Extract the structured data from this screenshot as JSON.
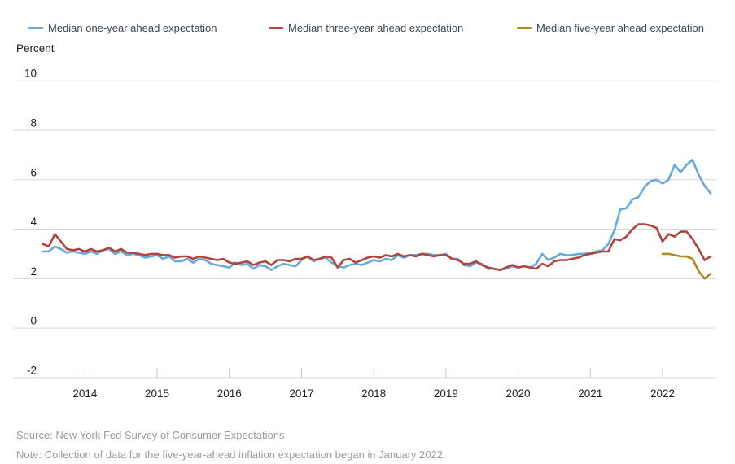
{
  "axis_unit_label": "Percent",
  "footer": {
    "source": "Source: New York Fed Survey of Consumer Expectations",
    "note": "Note: Collection of data for the five-year-ahead inflation expectation began in January 2022."
  },
  "legend": {
    "items": [
      {
        "label": "Median one-year ahead expectation",
        "color": "#67a9dd"
      },
      {
        "label": "Median three-year ahead expectation",
        "color": "#b2453e"
      },
      {
        "label": "Median five-year ahead expectation",
        "color": "#ad8b25"
      }
    ]
  },
  "chart_data": {
    "type": "line",
    "title": "",
    "xlabel": "",
    "ylabel": "Percent",
    "ylim": [
      -2,
      10
    ],
    "grid": "horizontal-only",
    "legend_position": "top",
    "y_ticks": [
      10,
      8,
      6,
      4,
      2,
      0,
      -2
    ],
    "x_tick_years": [
      "2014",
      "2015",
      "2016",
      "2017",
      "2018",
      "2019",
      "2020",
      "2021",
      "2022"
    ],
    "x_start": "2013-06",
    "x_end": "2022-09",
    "x_frequency": "monthly",
    "colors": {
      "gridline": "#d9d9d9",
      "tick": "#c6c6c6",
      "axis_text": "#212121"
    },
    "series": [
      {
        "name": "Median one-year ahead expectation",
        "color": "#67a9dd",
        "start_index": 0,
        "values": [
          3.1,
          3.1,
          3.3,
          3.2,
          3.05,
          3.1,
          3.05,
          3.0,
          3.1,
          3.0,
          3.15,
          3.2,
          3.0,
          3.1,
          2.95,
          3.0,
          2.95,
          2.85,
          2.9,
          2.95,
          2.8,
          2.9,
          2.7,
          2.7,
          2.8,
          2.65,
          2.8,
          2.75,
          2.6,
          2.55,
          2.5,
          2.45,
          2.65,
          2.55,
          2.6,
          2.4,
          2.55,
          2.5,
          2.35,
          2.5,
          2.6,
          2.55,
          2.5,
          2.75,
          2.9,
          2.7,
          2.8,
          2.85,
          2.65,
          2.5,
          2.45,
          2.55,
          2.6,
          2.55,
          2.65,
          2.75,
          2.7,
          2.8,
          2.75,
          2.95,
          2.85,
          2.95,
          2.95,
          3.0,
          3.0,
          2.95,
          2.95,
          3.0,
          2.8,
          2.8,
          2.55,
          2.5,
          2.65,
          2.6,
          2.4,
          2.4,
          2.35,
          2.4,
          2.5,
          2.45,
          2.5,
          2.45,
          2.6,
          3.0,
          2.75,
          2.85,
          3.0,
          2.95,
          2.95,
          3.0,
          3.0,
          3.05,
          3.1,
          3.15,
          3.4,
          3.95,
          4.8,
          4.85,
          5.2,
          5.3,
          5.7,
          5.95,
          6.0,
          5.85,
          6.0,
          6.6,
          6.3,
          6.6,
          6.8,
          6.2,
          5.75,
          5.45
        ]
      },
      {
        "name": "Median three-year ahead expectation",
        "color": "#b2453e",
        "start_index": 0,
        "values": [
          3.4,
          3.3,
          3.8,
          3.5,
          3.2,
          3.15,
          3.2,
          3.1,
          3.2,
          3.1,
          3.15,
          3.25,
          3.1,
          3.2,
          3.05,
          3.05,
          3.0,
          2.95,
          3.0,
          3.0,
          2.95,
          2.95,
          2.85,
          2.9,
          2.9,
          2.8,
          2.9,
          2.85,
          2.8,
          2.75,
          2.8,
          2.65,
          2.6,
          2.65,
          2.7,
          2.55,
          2.65,
          2.7,
          2.55,
          2.75,
          2.75,
          2.7,
          2.8,
          2.8,
          2.9,
          2.75,
          2.8,
          2.9,
          2.85,
          2.45,
          2.75,
          2.8,
          2.65,
          2.75,
          2.85,
          2.9,
          2.85,
          2.95,
          2.9,
          3.0,
          2.9,
          2.95,
          2.9,
          3.0,
          2.95,
          2.9,
          2.95,
          2.95,
          2.8,
          2.75,
          2.6,
          2.6,
          2.7,
          2.55,
          2.45,
          2.4,
          2.35,
          2.45,
          2.55,
          2.45,
          2.5,
          2.45,
          2.4,
          2.6,
          2.5,
          2.7,
          2.75,
          2.75,
          2.8,
          2.85,
          2.95,
          3.0,
          3.05,
          3.1,
          3.1,
          3.6,
          3.55,
          3.7,
          4.0,
          4.2,
          4.2,
          4.15,
          4.05,
          3.5,
          3.8,
          3.7,
          3.9,
          3.9,
          3.6,
          3.2,
          2.75,
          2.9
        ]
      },
      {
        "name": "Median five-year ahead expectation",
        "color": "#ad8b25",
        "start_index": 103,
        "values": [
          3.0,
          3.0,
          2.95,
          2.9,
          2.9,
          2.8,
          2.3,
          2.0,
          2.2
        ]
      }
    ]
  }
}
